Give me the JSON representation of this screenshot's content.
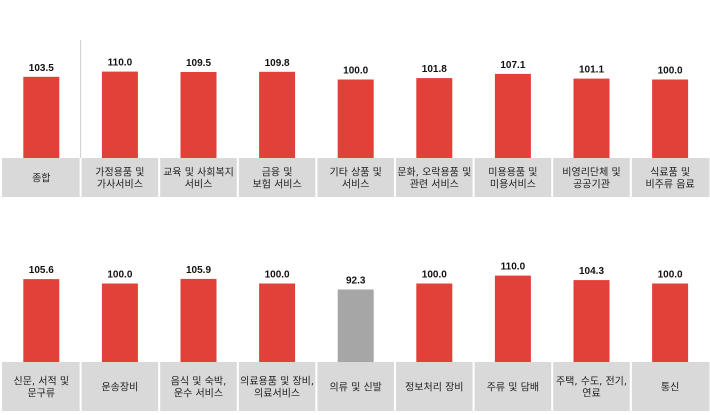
{
  "chart_data": [
    {
      "type": "bar",
      "categories": [
        [
          "종합"
        ],
        [
          "가정용품 및",
          "가사서비스"
        ],
        [
          "교육 및 사회복지",
          "서비스"
        ],
        [
          "금융 및",
          "보험 서비스"
        ],
        [
          "기타 상품 및",
          "서비스"
        ],
        [
          "문화, 오락용품 및",
          "관련 서비스"
        ],
        [
          "미용용품 및",
          "미용서비스"
        ],
        [
          "비영리단체 및",
          "공공기관"
        ],
        [
          "식료품 및",
          "비주류 음료"
        ]
      ],
      "values": [
        103.5,
        110.0,
        109.5,
        109.8,
        100.0,
        101.8,
        107.1,
        101.1,
        100.0
      ],
      "value_labels": [
        "103.5",
        "110.0",
        "109.5",
        "109.8",
        "100.0",
        "101.8",
        "107.1",
        "101.1",
        "100.0"
      ],
      "highlight": []
    },
    {
      "type": "bar",
      "categories": [
        [
          "신문, 서적 및",
          "문구류"
        ],
        [
          "운송장비"
        ],
        [
          "음식 및 숙박,",
          "운수 서비스"
        ],
        [
          "의료용품 및 장비,",
          "의료서비스"
        ],
        [
          "의류 및 신발"
        ],
        [
          "정보처리 장비"
        ],
        [
          "주류 및 담배"
        ],
        [
          "주택, 수도, 전기,",
          "연료"
        ],
        [
          "통신"
        ]
      ],
      "values": [
        105.6,
        100.0,
        105.9,
        100.0,
        92.3,
        100.0,
        110.0,
        104.3,
        100.0
      ],
      "value_labels": [
        "105.6",
        "100.0",
        "105.9",
        "100.0",
        "92.3",
        "100.0",
        "110.0",
        "104.3",
        "100.0"
      ],
      "highlight": [
        4
      ]
    }
  ],
  "colors": {
    "bar": "#e2413a",
    "bar_highlight": "#a6a6a6",
    "label_bg": "#d9d9d9",
    "separator": "#ffffff",
    "divider": "#d0d0d0"
  }
}
